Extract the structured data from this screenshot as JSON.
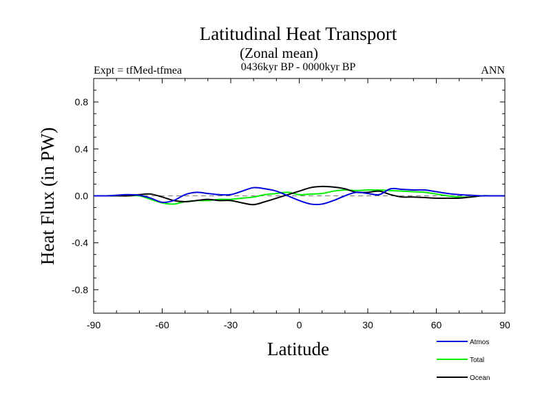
{
  "chart_data": {
    "type": "line",
    "title": "Latitudinal Heat Transport",
    "subtitle": "(Zonal mean)",
    "left_label": "Expt = tfMed-tfmea",
    "center_label": "0436kyr BP - 0000kyr BP",
    "right_label": "ANN",
    "xlabel": "Latitude",
    "ylabel": "Heat Flux (in PW)",
    "xlim": [
      -90,
      90
    ],
    "ylim": [
      -1.0,
      1.0
    ],
    "x_ticks": [
      -90,
      -60,
      -30,
      0,
      30,
      60,
      90
    ],
    "x_tick_labels": [
      "-90",
      "-60",
      "-30",
      "0",
      "30",
      "60",
      "90"
    ],
    "y_ticks": [
      -0.8,
      -0.4,
      0.0,
      0.4,
      0.8
    ],
    "y_tick_labels": [
      "-0.8",
      "-0.4",
      "0.0",
      "0.4",
      "0.8"
    ],
    "zero_line": "dashed",
    "legend_position": "bottom-right",
    "x": [
      -90,
      -85,
      -80,
      -75,
      -70,
      -65,
      -60,
      -55,
      -50,
      -45,
      -40,
      -35,
      -30,
      -25,
      -20,
      -15,
      -10,
      -5,
      0,
      5,
      10,
      15,
      20,
      25,
      30,
      35,
      40,
      45,
      50,
      55,
      60,
      65,
      70,
      75,
      80,
      85,
      90
    ],
    "series": [
      {
        "name": "Atmos",
        "color": "#0000dd",
        "values": [
          0.0,
          0.0,
          0.005,
          0.01,
          0.005,
          -0.02,
          -0.055,
          -0.04,
          0.01,
          0.03,
          0.02,
          0.01,
          0.01,
          0.04,
          0.07,
          0.06,
          0.04,
          0.0,
          -0.04,
          -0.07,
          -0.07,
          -0.04,
          0.0,
          0.03,
          0.02,
          0.01,
          0.06,
          0.055,
          0.05,
          0.05,
          0.035,
          0.02,
          0.01,
          0.005,
          0.0,
          0.0,
          0.0
        ]
      },
      {
        "name": "Total",
        "color": "#00ee00",
        "values": [
          0.0,
          0.0,
          0.0,
          0.0,
          0.0,
          -0.03,
          -0.06,
          -0.07,
          -0.05,
          -0.04,
          -0.04,
          -0.03,
          -0.03,
          -0.02,
          -0.01,
          0.01,
          0.02,
          0.03,
          0.01,
          0.015,
          0.02,
          0.04,
          0.05,
          0.045,
          0.05,
          0.05,
          0.045,
          0.04,
          0.035,
          0.03,
          0.015,
          0.0,
          -0.01,
          -0.01,
          0.0,
          0.0,
          0.0
        ]
      },
      {
        "name": "Ocean",
        "color": "#000000",
        "values": [
          0.0,
          0.0,
          0.0,
          0.0,
          0.01,
          0.015,
          -0.01,
          -0.04,
          -0.05,
          -0.04,
          -0.03,
          -0.04,
          -0.04,
          -0.06,
          -0.075,
          -0.05,
          -0.02,
          0.01,
          0.04,
          0.07,
          0.08,
          0.075,
          0.06,
          0.03,
          0.03,
          0.04,
          0.01,
          -0.01,
          -0.01,
          -0.015,
          -0.02,
          -0.02,
          -0.02,
          -0.01,
          0.0,
          0.0,
          0.0
        ]
      }
    ]
  }
}
